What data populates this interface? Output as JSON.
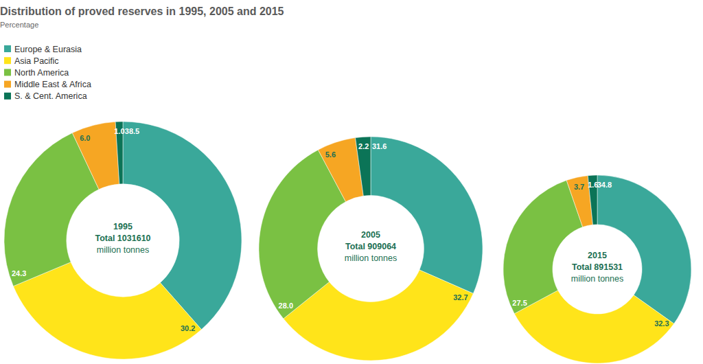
{
  "chart_data": {
    "type": "pie",
    "title": "Distribution of proved reserves in 1995, 2005 and 2015",
    "subtitle": "Percentage",
    "categories": [
      "Europe & Eurasia",
      "Asia Pacific",
      "North America",
      "Middle East & Africa",
      "S. & Cent. America"
    ],
    "colors": [
      "#3aa89a",
      "#ffe41a",
      "#7ac143",
      "#f6a623",
      "#0b7457"
    ],
    "legend": "top-left",
    "data_labels": true,
    "series": [
      {
        "name": "1995",
        "values": [
          38.5,
          30.2,
          24.3,
          6.0,
          1.0
        ],
        "value_labels": [
          "38.5",
          "30.2",
          "24.3",
          "6.0",
          "1.0"
        ],
        "total": {
          "value": 1031610,
          "label": "Total 1031610"
        },
        "unit": "million tonnes"
      },
      {
        "name": "2005",
        "values": [
          31.6,
          32.7,
          28.0,
          5.6,
          2.2
        ],
        "value_labels": [
          "31.6",
          "32.7",
          "28.0",
          "5.6",
          "2.2"
        ],
        "total": {
          "value": 909064,
          "label": "Total 909064"
        },
        "unit": "million tonnes"
      },
      {
        "name": "2015",
        "values": [
          34.8,
          32.3,
          27.5,
          3.7,
          1.6
        ],
        "value_labels": [
          "34.8",
          "32.3",
          "27.5",
          "3.7",
          "1.6"
        ],
        "total": {
          "value": 891531,
          "label": "Total 891531"
        },
        "unit": "million tonnes"
      }
    ]
  }
}
